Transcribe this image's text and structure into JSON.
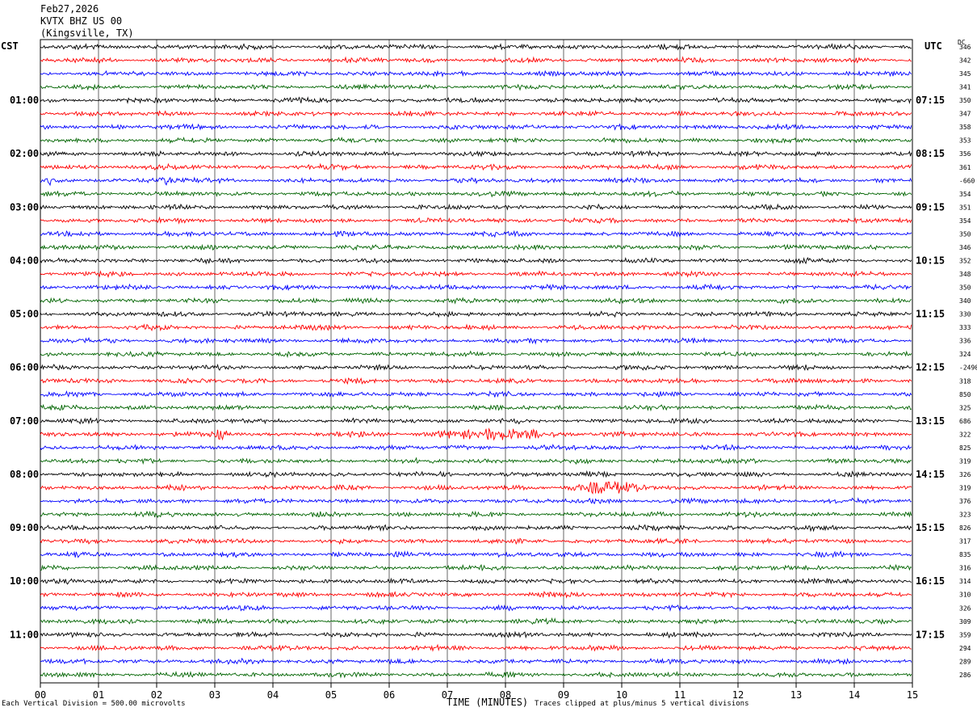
{
  "header": {
    "date": "Feb27,2026",
    "station": "KVTX BHZ US 00",
    "location": "(Kingsville, TX)"
  },
  "labels": {
    "left_timezone": "CST",
    "right_timezone": "UTC",
    "dc": "DC"
  },
  "footer": {
    "division_note": "Each Vertical Division =  500.00 microvolts",
    "xlabel": "TIME (MINUTES)",
    "clip_note": "Traces clipped at plus/minus 5 vertical divisions"
  },
  "colors": {
    "trace_cycle": [
      "#000000",
      "#ff0000",
      "#0000ff",
      "#006400"
    ],
    "grid": "#000000"
  },
  "chart_data": {
    "type": "line",
    "title": "",
    "xlabel": "TIME (MINUTES)",
    "ylabel": "",
    "xlim": [
      0,
      15
    ],
    "x_ticks": [
      "00",
      "01",
      "02",
      "03",
      "04",
      "05",
      "06",
      "07",
      "08",
      "09",
      "10",
      "11",
      "12",
      "13",
      "14",
      "15"
    ],
    "left_hour_labels": [
      "01:00",
      "02:00",
      "03:00",
      "04:00",
      "05:00",
      "06:00",
      "07:00",
      "08:00",
      "09:00",
      "10:00",
      "11:00"
    ],
    "right_hour_labels": [
      "07:15",
      "08:15",
      "09:15",
      "10:15",
      "11:15",
      "12:15",
      "13:15",
      "14:15",
      "15:15",
      "16:15",
      "17:15"
    ],
    "rows_per_hour": 4,
    "minutes_per_row": 15,
    "dc_offsets": [
      "346",
      "342",
      "345",
      "341",
      "350",
      "347",
      "358",
      "353",
      "356",
      "361",
      "-660",
      "354",
      "351",
      "354",
      "350",
      "346",
      "352",
      "348",
      "350",
      "340",
      "330",
      "333",
      "336",
      "324",
      "-24907",
      "318",
      "850",
      "325",
      "686",
      "322",
      "825",
      "319",
      "326",
      "319",
      "376",
      "323",
      "826",
      "317",
      "835",
      "316",
      "314",
      "310",
      "326",
      "309",
      "359",
      "294",
      "289",
      "286"
    ],
    "events": [
      {
        "row": 29,
        "start_min": 6.4,
        "end_min": 9.4,
        "amp": 2.6
      },
      {
        "row": 29,
        "start_min": 2.9,
        "end_min": 3.3,
        "amp": 2.2
      },
      {
        "row": 33,
        "start_min": 8.9,
        "end_min": 10.6,
        "amp": 3.0
      },
      {
        "row": 10,
        "start_min": 0.0,
        "end_min": 0.3,
        "amp": 2.0
      },
      {
        "row": 10,
        "start_min": 1.8,
        "end_min": 2.4,
        "amp": 2.0
      }
    ]
  }
}
